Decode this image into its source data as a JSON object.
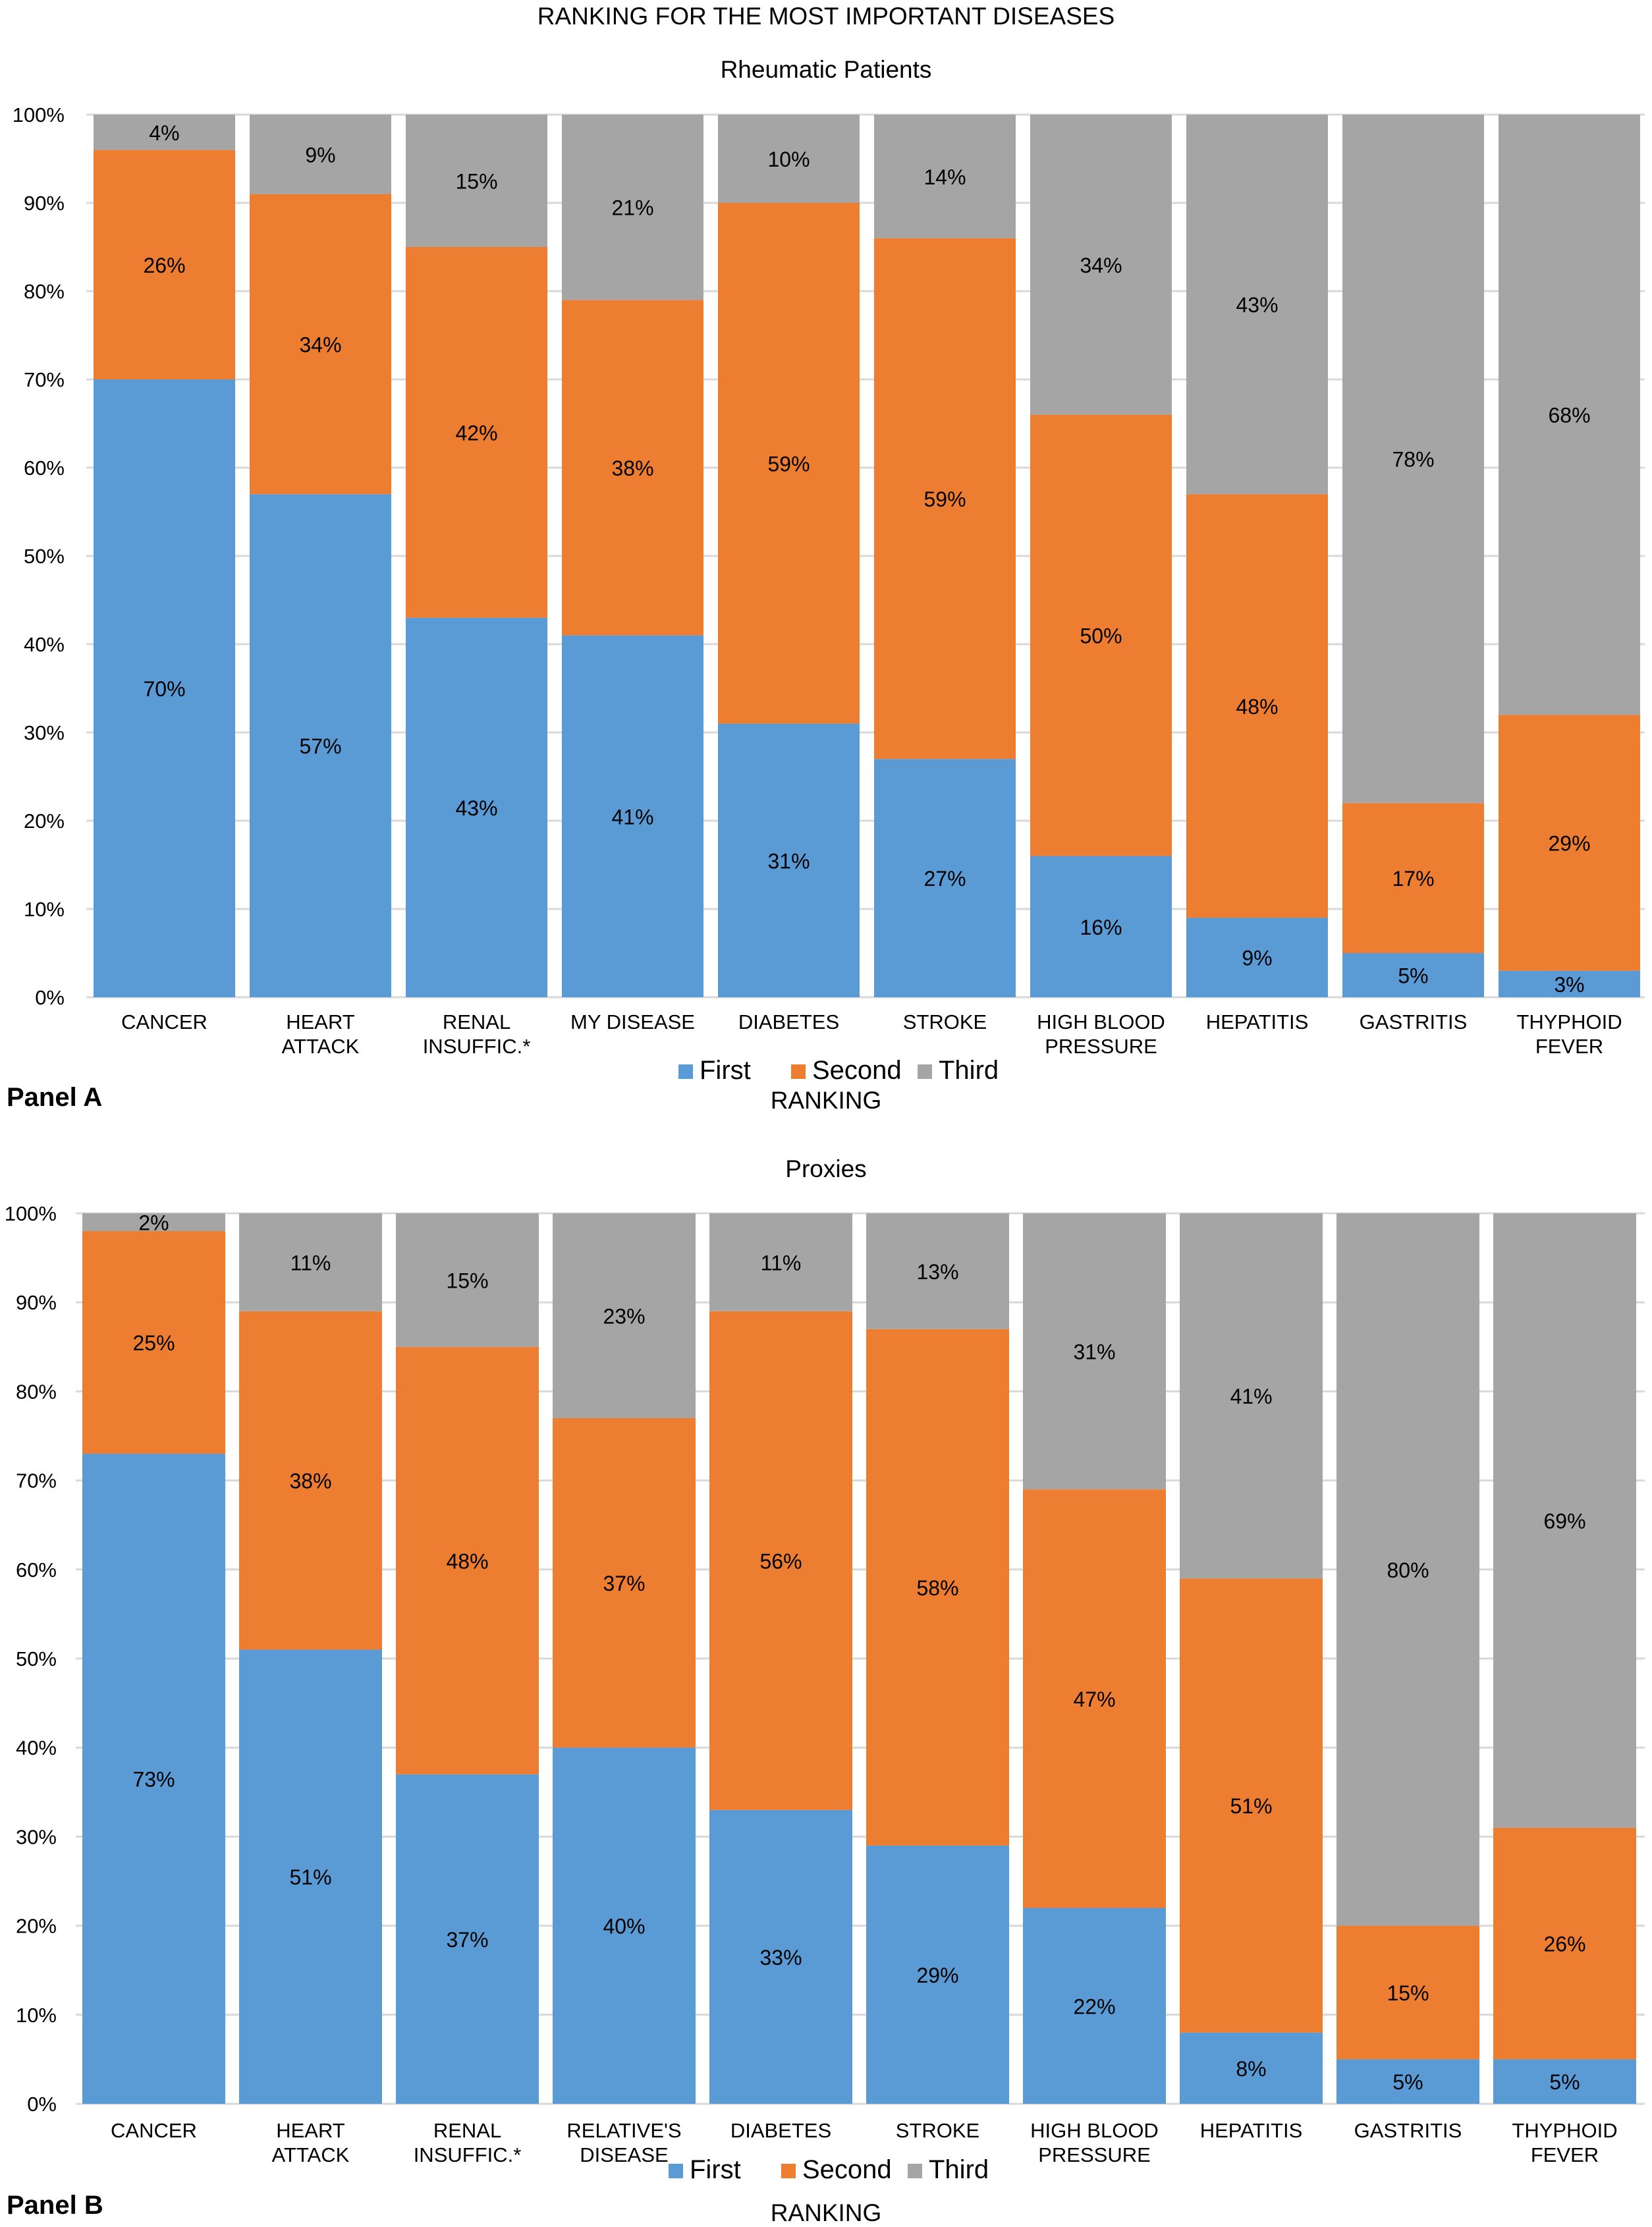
{
  "figure": {
    "title": "RANKING FOR THE MOST IMPORTANT DISEASES"
  },
  "colors": {
    "First": "#5b9bd5",
    "Second": "#ed7d31",
    "Third": "#a5a5a5",
    "gridline": "#d9d9d9",
    "text": "#000000"
  },
  "chart_data": [
    {
      "type": "bar",
      "stacked": "percent",
      "panel_label": "Panel A",
      "title": "Rheumatic Patients",
      "xlabel": "",
      "ylabel": "",
      "legend_title": "RANKING",
      "legend_position": "bottom",
      "grid": true,
      "ylim": [
        0,
        100
      ],
      "yticks": [
        "0%",
        "10%",
        "20%",
        "30%",
        "40%",
        "50%",
        "60%",
        "70%",
        "80%",
        "90%",
        "100%"
      ],
      "categories": [
        [
          "CANCER"
        ],
        [
          "HEART",
          "ATTACK"
        ],
        [
          "RENAL",
          "INSUFFIC.*"
        ],
        [
          "MY DISEASE"
        ],
        [
          "DIABETES"
        ],
        [
          "STROKE"
        ],
        [
          "HIGH BLOOD",
          "PRESSURE"
        ],
        [
          "HEPATITIS"
        ],
        [
          "GASTRITIS"
        ],
        [
          "THYPHOID",
          "FEVER"
        ]
      ],
      "series": [
        {
          "name": "First",
          "values": [
            70,
            57,
            43,
            41,
            31,
            27,
            16,
            9,
            5,
            3
          ]
        },
        {
          "name": "Second",
          "values": [
            26,
            34,
            42,
            38,
            59,
            59,
            50,
            48,
            17,
            29
          ]
        },
        {
          "name": "Third",
          "values": [
            4,
            9,
            15,
            21,
            10,
            14,
            34,
            43,
            78,
            68
          ]
        }
      ]
    },
    {
      "type": "bar",
      "stacked": "percent",
      "panel_label": "Panel B",
      "title": "Proxies",
      "xlabel": "",
      "ylabel": "",
      "legend_title": "RANKING",
      "legend_position": "bottom",
      "grid": true,
      "ylim": [
        0,
        100
      ],
      "yticks": [
        "0%",
        "10%",
        "20%",
        "30%",
        "40%",
        "50%",
        "60%",
        "70%",
        "80%",
        "90%",
        "100%"
      ],
      "categories": [
        [
          "CANCER"
        ],
        [
          "HEART",
          "ATTACK"
        ],
        [
          "RENAL",
          "INSUFFIC.*"
        ],
        [
          "RELATIVE'S",
          "DISEASE"
        ],
        [
          "DIABETES"
        ],
        [
          "STROKE"
        ],
        [
          "HIGH BLOOD",
          "PRESSURE"
        ],
        [
          "HEPATITIS"
        ],
        [
          "GASTRITIS"
        ],
        [
          "THYPHOID",
          "FEVER"
        ]
      ],
      "series": [
        {
          "name": "First",
          "values": [
            73,
            51,
            37,
            40,
            33,
            29,
            22,
            8,
            5,
            5
          ]
        },
        {
          "name": "Second",
          "values": [
            25,
            38,
            48,
            37,
            56,
            58,
            47,
            51,
            15,
            26
          ]
        },
        {
          "name": "Third",
          "values": [
            2,
            11,
            15,
            23,
            11,
            13,
            31,
            41,
            80,
            69
          ]
        }
      ]
    }
  ]
}
